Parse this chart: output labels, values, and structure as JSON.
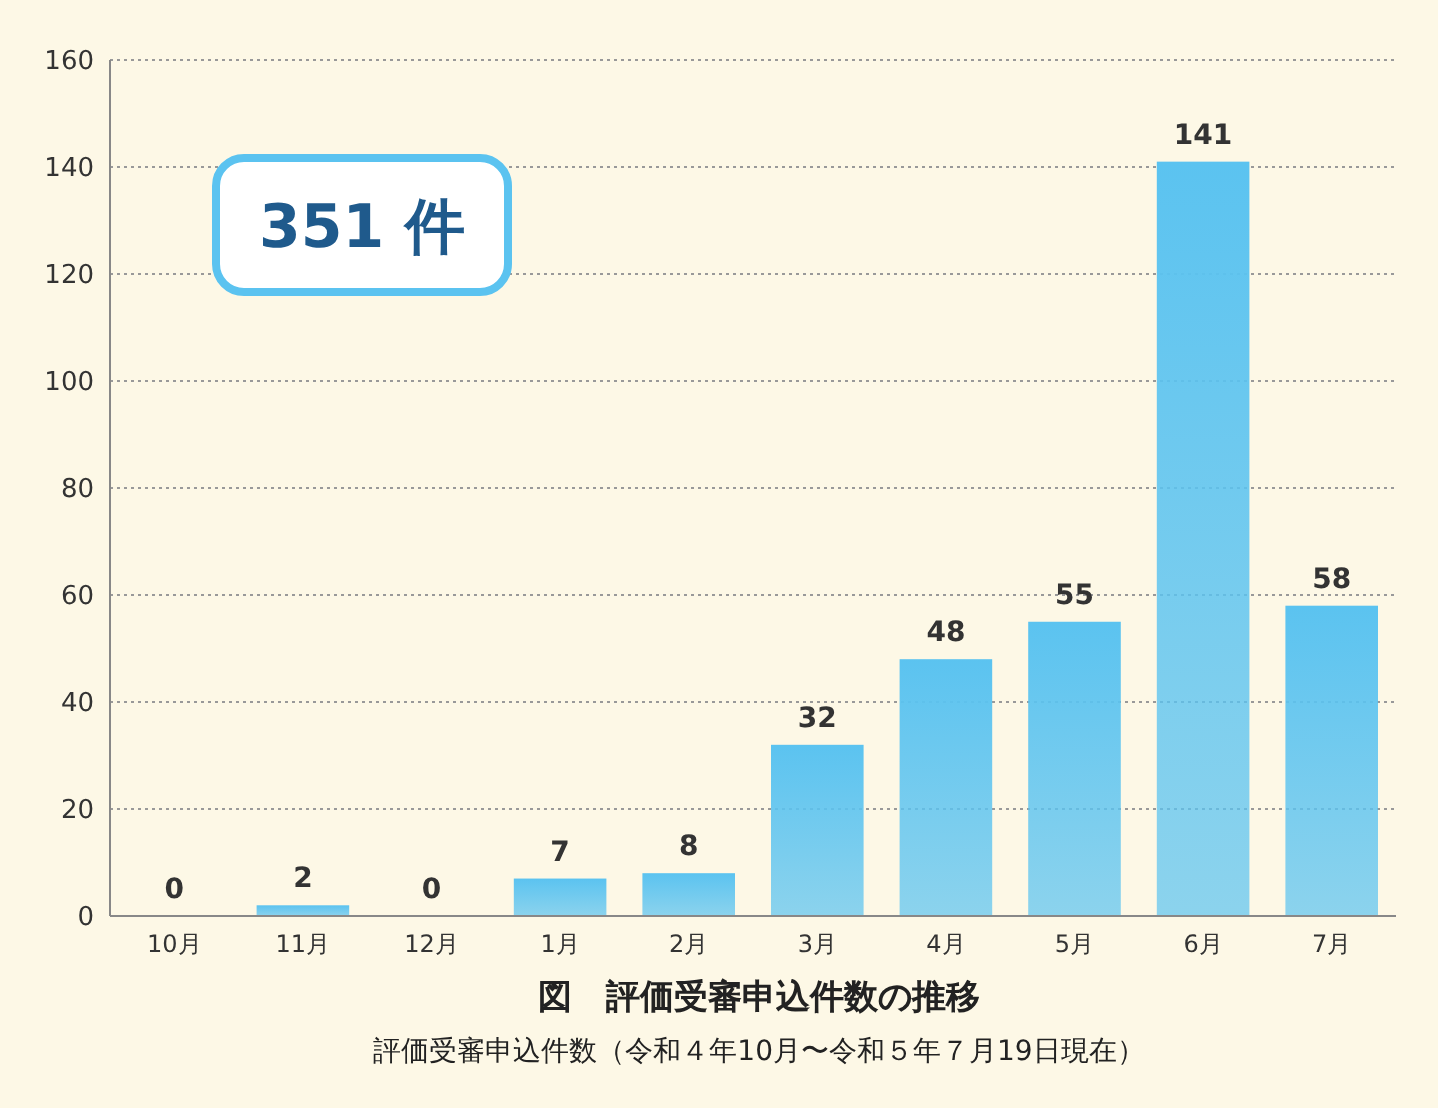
{
  "chart_data": {
    "type": "bar",
    "title": "図　評価受審申込件数の推移",
    "subtitle": "評価受審申込件数（令和４年10月〜令和５年７月19日現在）",
    "annotations": [
      "351 件"
    ],
    "categories": [
      "10月",
      "11月",
      "12月",
      "1月",
      "2月",
      "3月",
      "4月",
      "5月",
      "6月",
      "7月"
    ],
    "values": [
      0,
      2,
      0,
      7,
      8,
      32,
      48,
      55,
      141,
      58
    ],
    "color": "#5bc3f0",
    "ylim": [
      0,
      160
    ],
    "yticks": [
      0,
      20,
      40,
      60,
      80,
      100,
      120,
      140,
      160
    ],
    "grid": "y",
    "data_labels": true
  }
}
